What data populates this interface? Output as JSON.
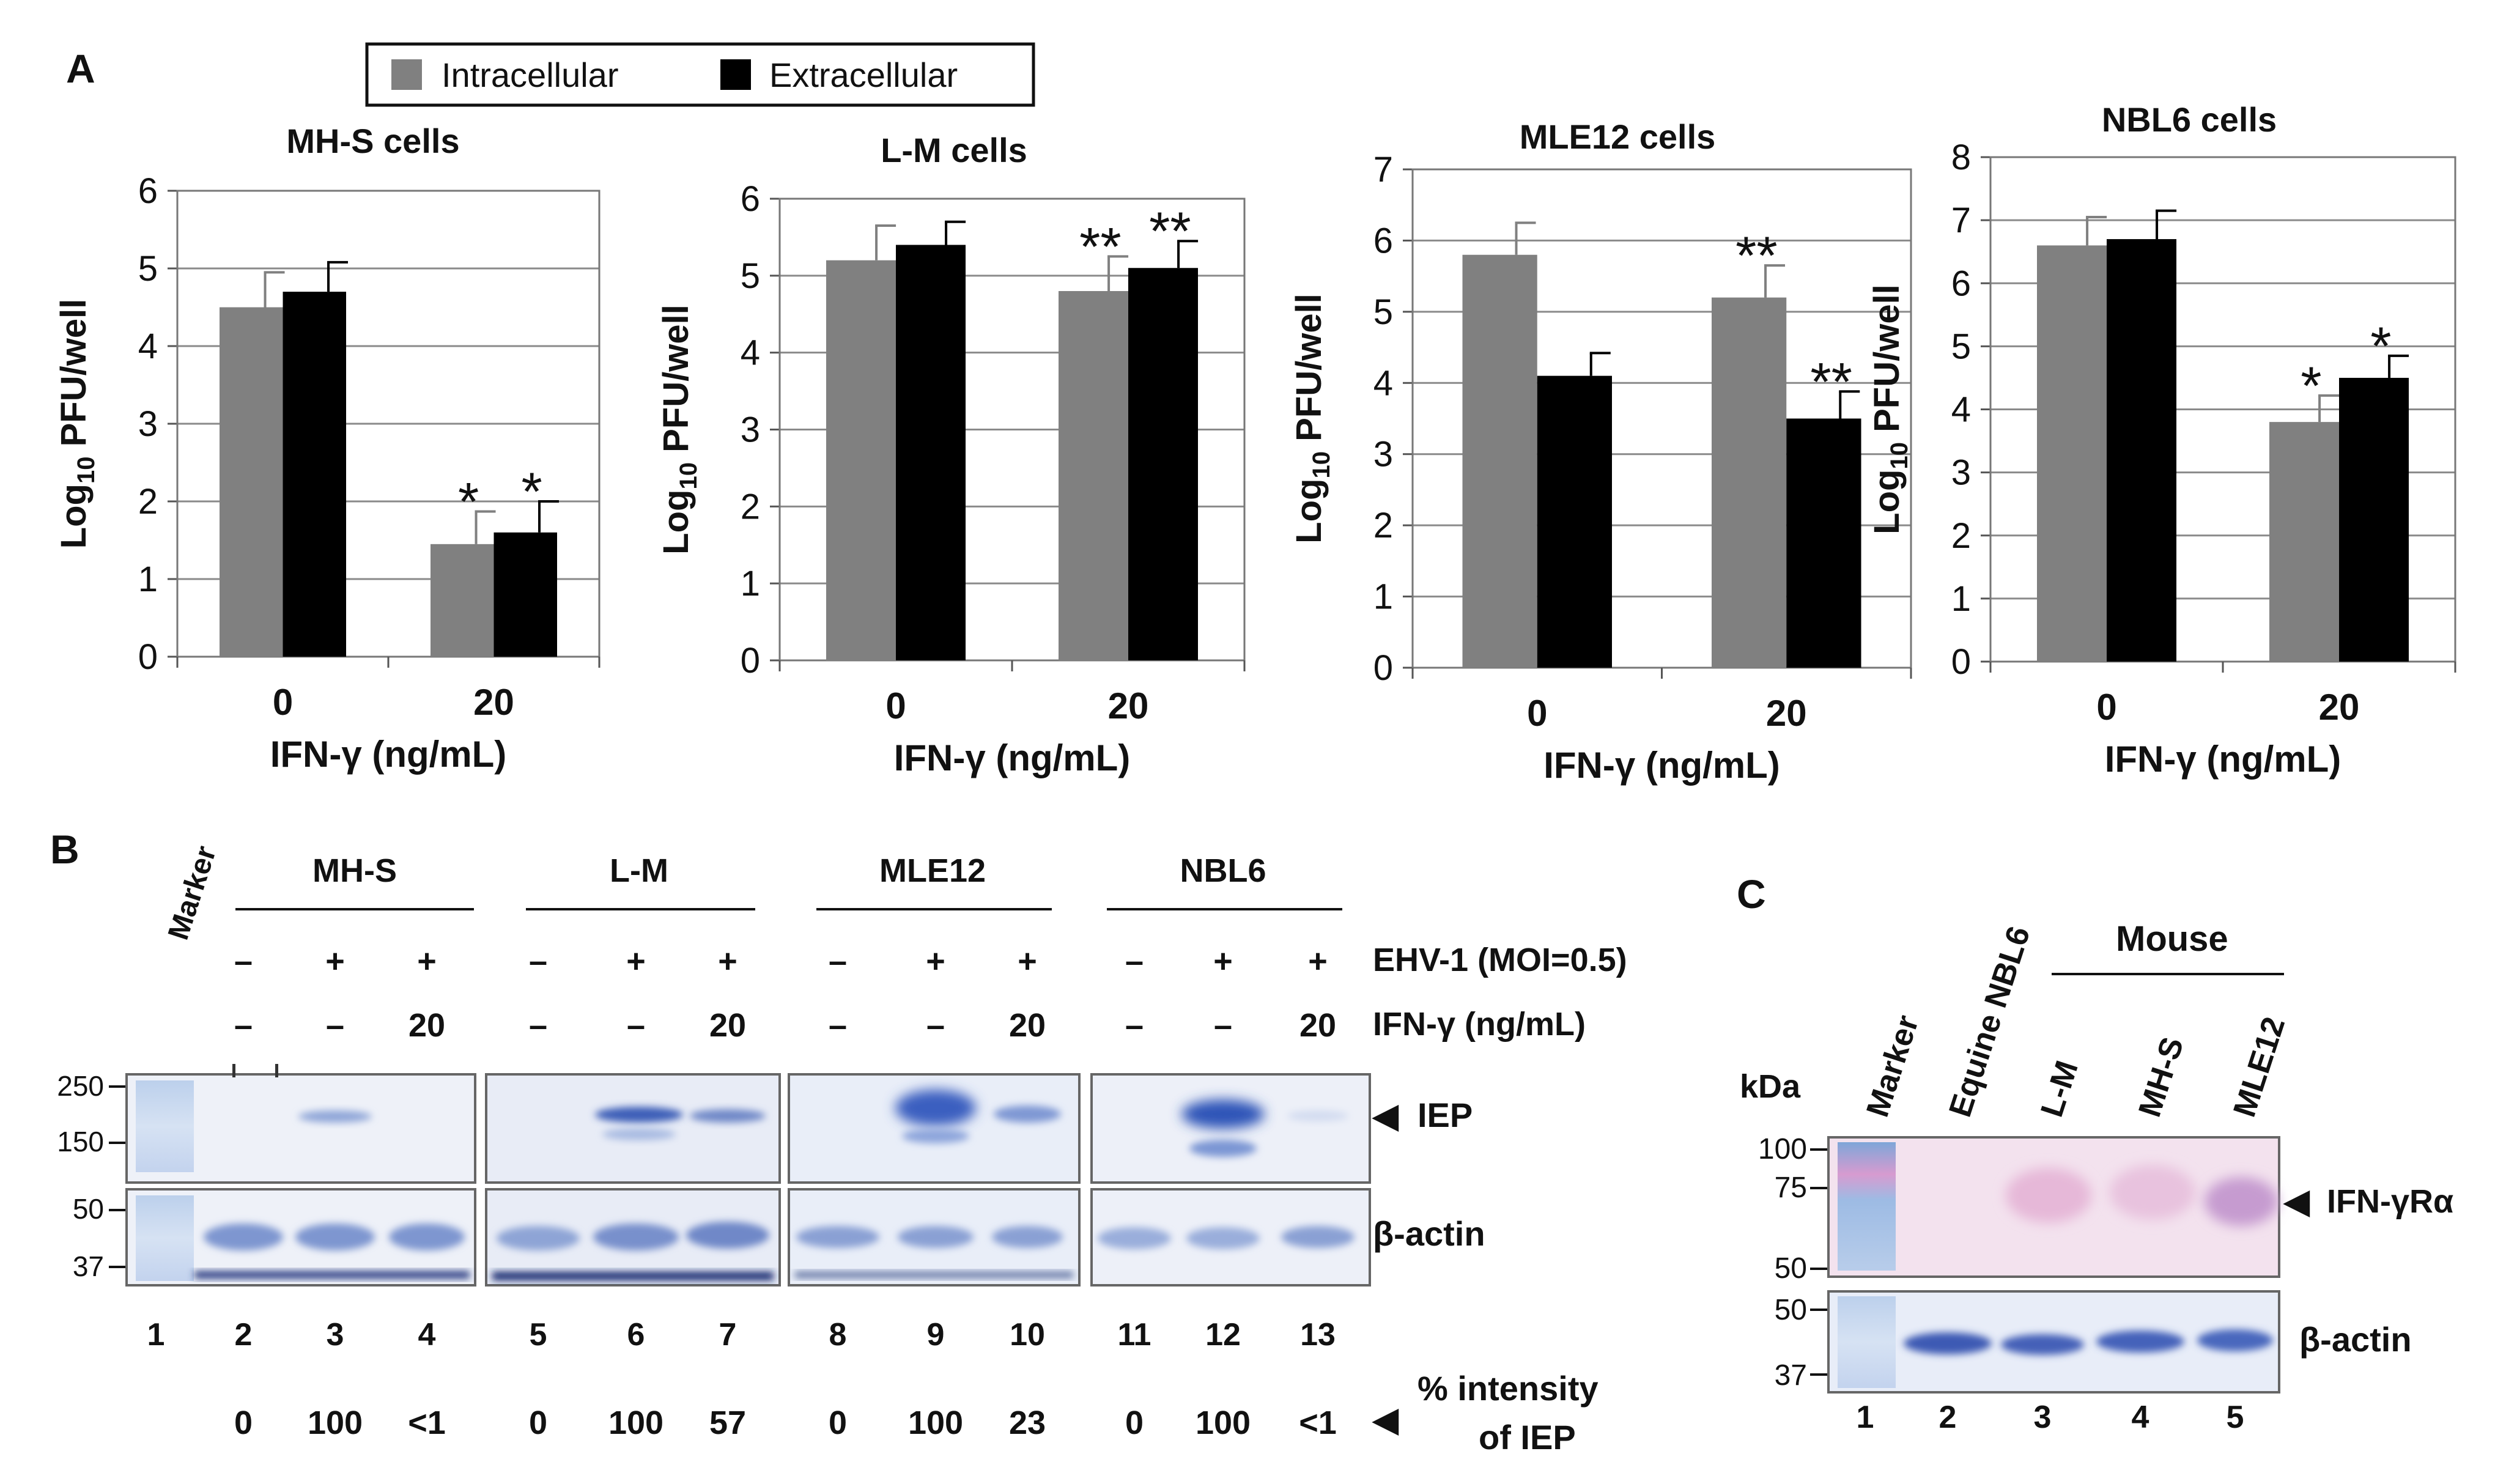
{
  "panel_labels": {
    "a": "A",
    "b": "B",
    "c": "C"
  },
  "legend": {
    "intracellular": {
      "label": "Intracellular",
      "color": "#808080"
    },
    "extracellular": {
      "label": "Extracellular",
      "color": "#000000"
    }
  },
  "chart_data": [
    {
      "type": "bar",
      "title": "MH-S cells",
      "ylabel": "Log10 PFU/well",
      "xlabel": "IFN-γ (ng/mL)",
      "categories": [
        "0",
        "20"
      ],
      "ylim": [
        0,
        6
      ],
      "yticks": [
        "0",
        "1",
        "2",
        "3",
        "4",
        "5",
        "6"
      ],
      "series": [
        {
          "name": "Intracellular",
          "values": [
            4.5,
            1.45
          ],
          "errors": [
            0.45,
            0.42
          ],
          "significance": [
            "",
            "*"
          ]
        },
        {
          "name": "Extracellular",
          "values": [
            4.7,
            1.6
          ],
          "errors": [
            0.38,
            0.4
          ],
          "significance": [
            "",
            "*"
          ]
        }
      ]
    },
    {
      "type": "bar",
      "title": "L-M cells",
      "ylabel": "Log10 PFU/well",
      "xlabel": "IFN-γ (ng/mL)",
      "categories": [
        "0",
        "20"
      ],
      "ylim": [
        0,
        6
      ],
      "yticks": [
        "0",
        "1",
        "2",
        "3",
        "4",
        "5",
        "6"
      ],
      "series": [
        {
          "name": "Intracellular",
          "values": [
            5.2,
            4.8
          ],
          "errors": [
            0.45,
            0.45
          ],
          "significance": [
            "",
            "**"
          ]
        },
        {
          "name": "Extracellular",
          "values": [
            5.4,
            5.1
          ],
          "errors": [
            0.3,
            0.35
          ],
          "significance": [
            "",
            "**"
          ]
        }
      ]
    },
    {
      "type": "bar",
      "title": "MLE12  cells",
      "ylabel": "Log10 PFU/well",
      "xlabel": "IFN-γ (ng/mL)",
      "categories": [
        "0",
        "20"
      ],
      "ylim": [
        0,
        7
      ],
      "yticks": [
        "0",
        "1",
        "2",
        "3",
        "4",
        "5",
        "6",
        "7"
      ],
      "series": [
        {
          "name": "Intracellular",
          "values": [
            5.8,
            5.2
          ],
          "errors": [
            0.45,
            0.45
          ],
          "significance": [
            "",
            "**"
          ]
        },
        {
          "name": "Extracellular",
          "values": [
            4.1,
            3.5
          ],
          "errors": [
            0.32,
            0.38
          ],
          "significance": [
            "",
            "**"
          ]
        }
      ]
    },
    {
      "type": "bar",
      "title": "NBL6  cells",
      "ylabel": "Log10 PFU/well",
      "xlabel": "IFN-γ (ng/mL)",
      "categories": [
        "0",
        "20"
      ],
      "ylim": [
        0,
        8
      ],
      "yticks": [
        "0",
        "1",
        "2",
        "3",
        "4",
        "5",
        "6",
        "7",
        "8"
      ],
      "series": [
        {
          "name": "Intracellular",
          "values": [
            6.6,
            3.8
          ],
          "errors": [
            0.45,
            0.42
          ],
          "significance": [
            "",
            "*"
          ]
        },
        {
          "name": "Extracellular",
          "values": [
            6.7,
            4.5
          ],
          "errors": [
            0.45,
            0.35
          ],
          "significance": [
            "",
            "*"
          ]
        }
      ]
    }
  ],
  "ylabel_parts": {
    "pre": "Log",
    "sub": "10",
    "post": " PFU/well"
  },
  "blot_b": {
    "marker_label": "Marker",
    "groups": [
      "MH-S",
      "L-M",
      "MLE12",
      "NBL6"
    ],
    "ehv_row": [
      "–",
      "+",
      "+",
      "–",
      "+",
      "+",
      "–",
      "+",
      "+",
      "–",
      "+",
      "+"
    ],
    "ifn_row": [
      "–",
      "–",
      "20",
      "–",
      "–",
      "20",
      "–",
      "–",
      "20",
      "–",
      "–",
      "20"
    ],
    "ehv_label": "EHV-1 (MOI=0.5)",
    "ifn_label": "IFN-γ (ng/mL)",
    "mw_top": [
      "250",
      "150"
    ],
    "mw_bottom": [
      "50",
      "37"
    ],
    "iep_label": "IEP",
    "actin_label": "β-actin",
    "lanes": [
      "1",
      "2",
      "3",
      "4",
      "5",
      "6",
      "7",
      "8",
      "9",
      "10",
      "11",
      "12",
      "13"
    ],
    "intensity": [
      "0",
      "100",
      "<1",
      "0",
      "100",
      "57",
      "0",
      "100",
      "23",
      "0",
      "100",
      "<1"
    ],
    "intensity_label_1": "%  intensity",
    "intensity_label_2": "of IEP"
  },
  "blot_c": {
    "lane_labels": [
      "Marker",
      "Equine NBL6",
      "L-M",
      "MH-S",
      "MLE12"
    ],
    "mouse_label": "Mouse",
    "kda_label": "kDa",
    "mw_top": [
      "100",
      "75",
      "50"
    ],
    "mw_bottom": [
      "50",
      "37"
    ],
    "receptor_label": "IFN-γRα",
    "actin_label": "β-actin",
    "lanes": [
      "1",
      "2",
      "3",
      "4",
      "5"
    ]
  }
}
